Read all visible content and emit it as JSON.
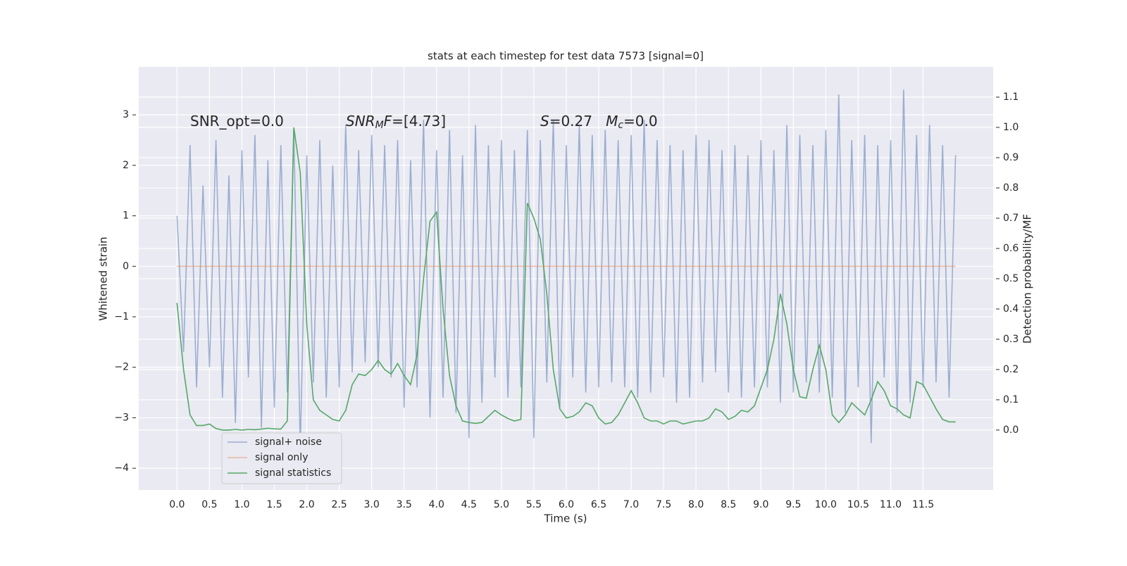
{
  "chart_data": {
    "type": "line",
    "title": "stats at each timestep for test data 7573 [signal=0]",
    "xlabel": "Time (s)",
    "ylabel": "Whitened strain",
    "y2label": "Detection probability/MF",
    "annotations": [
      [
        {
          "text": "SNR_opt=0.0"
        }
      ],
      [
        {
          "text": "SNR",
          "italic": true
        },
        {
          "text": "M",
          "italic": true,
          "sub": true
        },
        {
          "text": "F",
          "italic": true
        },
        {
          "text": "=[4.73]"
        }
      ],
      [
        {
          "text": "S",
          "italic": true
        },
        {
          "text": "=0.27   "
        },
        {
          "text": "M",
          "italic": true
        },
        {
          "text": "c",
          "italic": true,
          "sub": true
        },
        {
          "text": "=0.0"
        }
      ]
    ],
    "x": [
      0,
      0.1,
      0.2,
      0.3,
      0.4,
      0.5,
      0.6,
      0.7,
      0.8,
      0.9,
      1,
      1.1,
      1.2,
      1.3,
      1.4,
      1.5,
      1.6,
      1.7,
      1.8,
      1.9,
      2,
      2.1,
      2.2,
      2.3,
      2.4,
      2.5,
      2.6,
      2.7,
      2.8,
      2.9,
      3,
      3.1,
      3.2,
      3.3,
      3.4,
      3.5,
      3.6,
      3.7,
      3.8,
      3.9,
      4,
      4.1,
      4.2,
      4.3,
      4.4,
      4.5,
      4.6,
      4.7,
      4.8,
      4.9,
      5,
      5.1,
      5.2,
      5.3,
      5.4,
      5.5,
      5.6,
      5.7,
      5.8,
      5.9,
      6,
      6.1,
      6.2,
      6.3,
      6.4,
      6.5,
      6.6,
      6.7,
      6.8,
      6.9,
      7,
      7.1,
      7.2,
      7.3,
      7.4,
      7.5,
      7.6,
      7.7,
      7.8,
      7.9,
      8,
      8.1,
      8.2,
      8.3,
      8.4,
      8.5,
      8.6,
      8.7,
      8.8,
      8.9,
      9,
      9.1,
      9.2,
      9.3,
      9.4,
      9.5,
      9.6,
      9.7,
      9.8,
      9.9,
      10,
      10.1,
      10.2,
      10.3,
      10.4,
      10.5,
      10.6,
      10.7,
      10.8,
      10.9,
      11,
      11.1,
      11.2,
      11.3,
      11.4,
      11.5,
      11.6,
      11.7,
      11.8,
      11.9,
      12
    ],
    "series": [
      {
        "name": "signal+ noise",
        "color": "#4c72b0",
        "opacity": 0.5,
        "values": [
          1.0,
          -1.7,
          2.4,
          -2.4,
          1.6,
          -2.0,
          2.5,
          -2.6,
          1.8,
          -3.1,
          2.3,
          -2.2,
          2.6,
          -3.2,
          2.1,
          -2.8,
          2.4,
          -2.5,
          2.7,
          -3.6,
          2.2,
          -2.3,
          2.5,
          -2.6,
          2.0,
          -2.4,
          2.8,
          -2.1,
          2.3,
          -1.9,
          2.6,
          -2.0,
          2.4,
          -2.2,
          2.5,
          -2.8,
          2.1,
          -2.4,
          2.9,
          -3.0,
          2.3,
          -2.6,
          2.7,
          -2.9,
          2.2,
          -3.4,
          2.8,
          -2.7,
          2.4,
          -2.2,
          2.5,
          -2.6,
          2.3,
          -2.4,
          2.7,
          -3.4,
          2.5,
          -2.3,
          2.9,
          -2.8,
          2.4,
          -2.2,
          2.8,
          -2.5,
          2.6,
          -2.4,
          2.7,
          -2.3,
          2.5,
          -2.4,
          2.6,
          -2.6,
          2.9,
          -2.5,
          2.5,
          -2.2,
          2.4,
          -2.7,
          2.3,
          -2.6,
          2.6,
          -2.3,
          2.5,
          -2.1,
          2.3,
          -2.5,
          2.4,
          -2.6,
          2.2,
          -2.4,
          2.5,
          -2.4,
          2.3,
          -2.7,
          2.8,
          -2.5,
          2.6,
          -2.3,
          2.4,
          -2.5,
          2.7,
          -2.6,
          3.4,
          -2.9,
          2.5,
          -2.4,
          2.6,
          -3.5,
          2.4,
          -2.2,
          2.5,
          -2.9,
          3.5,
          -2.7,
          2.6,
          -2.4,
          2.8,
          -2.3,
          2.4,
          -2.6,
          2.2
        ]
      },
      {
        "name": "signal only",
        "color": "#dd8452",
        "opacity": 0.5,
        "values": [
          0,
          0,
          0,
          0,
          0,
          0,
          0,
          0,
          0,
          0,
          0,
          0,
          0,
          0,
          0,
          0,
          0,
          0,
          0,
          0,
          0,
          0,
          0,
          0,
          0,
          0,
          0,
          0,
          0,
          0,
          0,
          0,
          0,
          0,
          0,
          0,
          0,
          0,
          0,
          0,
          0,
          0,
          0,
          0,
          0,
          0,
          0,
          0,
          0,
          0,
          0,
          0,
          0,
          0,
          0,
          0,
          0,
          0,
          0,
          0,
          0,
          0,
          0,
          0,
          0,
          0,
          0,
          0,
          0,
          0,
          0,
          0,
          0,
          0,
          0,
          0,
          0,
          0,
          0,
          0,
          0,
          0,
          0,
          0,
          0,
          0,
          0,
          0,
          0,
          0,
          0,
          0,
          0,
          0,
          0,
          0,
          0,
          0,
          0,
          0,
          0,
          0,
          0,
          0,
          0,
          0,
          0,
          0,
          0,
          0,
          0,
          0,
          0,
          0,
          0,
          0,
          0,
          0,
          0,
          0,
          0
        ]
      },
      {
        "name": "signal statistics",
        "color": "#55a868",
        "opacity": 1,
        "axis": "y2",
        "values": [
          0.42,
          0.2,
          0.05,
          0.015,
          0.015,
          0.02,
          0.005,
          0.0,
          0.0,
          0.002,
          0.0,
          0.002,
          0.001,
          0.003,
          0.006,
          0.004,
          0.003,
          0.03,
          1.0,
          0.85,
          0.35,
          0.1,
          0.065,
          0.05,
          0.035,
          0.03,
          0.065,
          0.15,
          0.185,
          0.18,
          0.2,
          0.23,
          0.2,
          0.185,
          0.22,
          0.18,
          0.15,
          0.25,
          0.5,
          0.69,
          0.72,
          0.4,
          0.18,
          0.08,
          0.03,
          0.025,
          0.022,
          0.025,
          0.045,
          0.065,
          0.05,
          0.038,
          0.03,
          0.035,
          0.75,
          0.7,
          0.63,
          0.45,
          0.2,
          0.07,
          0.04,
          0.045,
          0.06,
          0.09,
          0.08,
          0.04,
          0.02,
          0.025,
          0.05,
          0.09,
          0.13,
          0.09,
          0.04,
          0.03,
          0.03,
          0.02,
          0.03,
          0.03,
          0.02,
          0.025,
          0.03,
          0.03,
          0.04,
          0.07,
          0.06,
          0.035,
          0.045,
          0.065,
          0.06,
          0.08,
          0.14,
          0.2,
          0.3,
          0.45,
          0.35,
          0.2,
          0.11,
          0.105,
          0.2,
          0.28,
          0.2,
          0.05,
          0.025,
          0.05,
          0.09,
          0.07,
          0.05,
          0.1,
          0.16,
          0.13,
          0.08,
          0.07,
          0.05,
          0.04,
          0.16,
          0.15,
          0.11,
          0.07,
          0.035,
          0.027,
          0.027
        ]
      }
    ],
    "xlim": [
      -0.59,
      12.58
    ],
    "xticks": [
      {
        "value": 0,
        "label": "0.0"
      },
      0.5,
      {
        "value": 1,
        "label": "1.0"
      },
      1.5,
      {
        "value": 2,
        "label": "2.0"
      },
      2.5,
      {
        "value": 3,
        "label": "3.0"
      },
      3.5,
      {
        "value": 4,
        "label": "4.0"
      },
      4.5,
      {
        "value": 5,
        "label": "5.0"
      },
      5.5,
      {
        "value": 6,
        "label": "6.0"
      },
      6.5,
      {
        "value": 7,
        "label": "7.0"
      },
      7.5,
      {
        "value": 8,
        "label": "8.0"
      },
      8.5,
      {
        "value": 9,
        "label": "9.0"
      },
      9.5,
      {
        "value": 10,
        "label": "10.0"
      },
      10.5,
      {
        "value": 11,
        "label": "11.0"
      },
      11.5
    ],
    "ylim": [
      -4.43,
      3.95
    ],
    "yticks": [
      {
        "value": -4,
        "label": "−4"
      },
      {
        "value": -3,
        "label": "−3"
      },
      {
        "value": -2,
        "label": "−2"
      },
      {
        "value": -1,
        "label": "−1"
      },
      0,
      1,
      2,
      3
    ],
    "y2lim": [
      -0.198,
      1.2
    ],
    "y2ticks": [
      {
        "value": 0,
        "label": "0.0"
      },
      0.1,
      0.2,
      0.3,
      0.4,
      0.5,
      0.6,
      0.7,
      0.8,
      0.9,
      {
        "value": 1,
        "label": "1.0"
      },
      1.1
    ],
    "grid": true,
    "legend": "lower left"
  }
}
